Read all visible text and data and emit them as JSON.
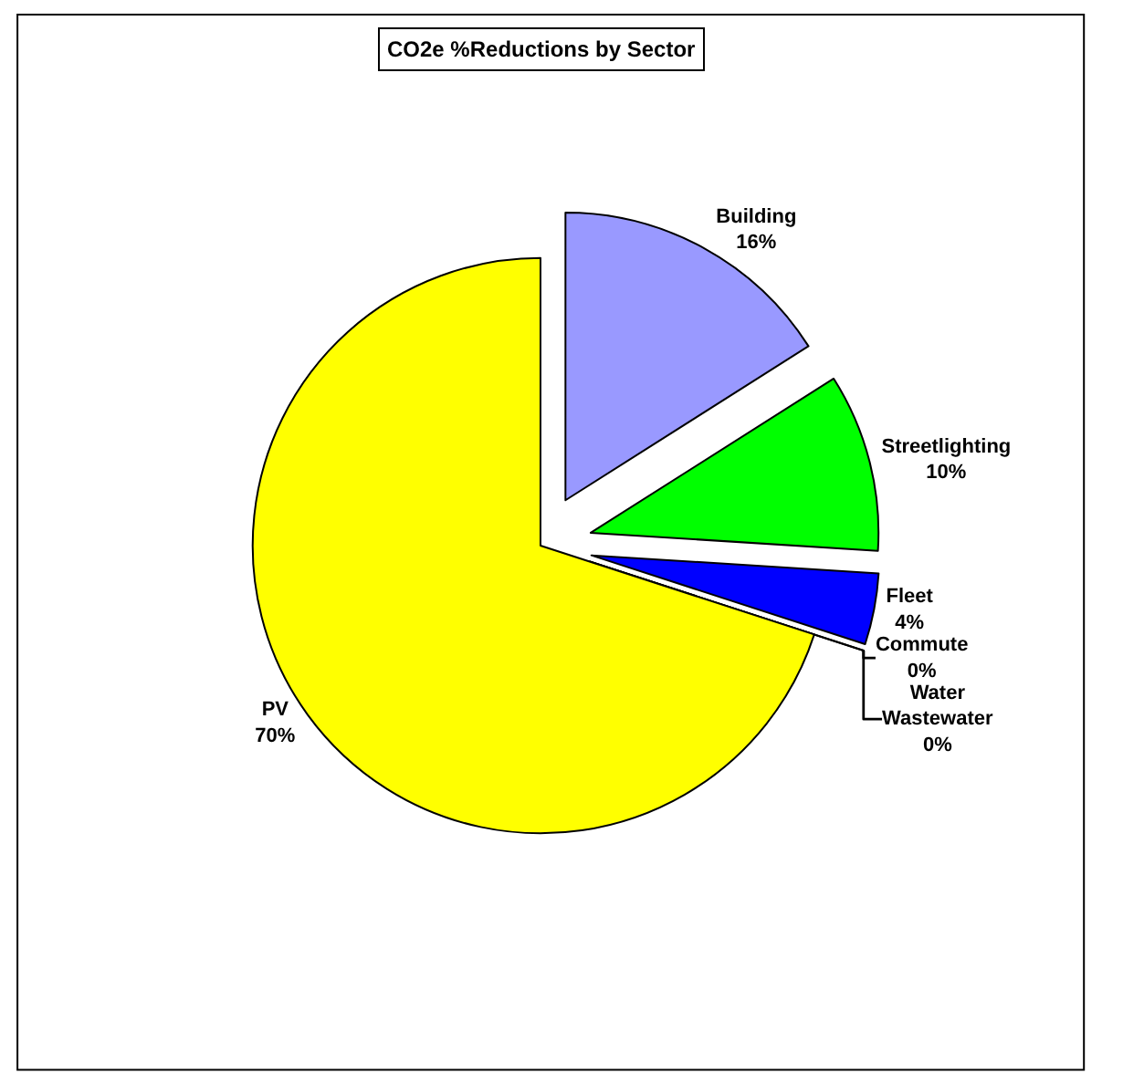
{
  "chart_data": {
    "type": "pie",
    "title": "CO2e %Reductions by Sector",
    "categories": [
      "Building",
      "Streetlighting",
      "Fleet",
      "Commute",
      "Water\nWastewater",
      "PV"
    ],
    "values": [
      16,
      10,
      4,
      0,
      0,
      70
    ],
    "value_labels": [
      "16%",
      "10%",
      "4%",
      "0%",
      "0%",
      "70%"
    ],
    "colors": [
      "#9999ff",
      "#00ff00",
      "#0000ff",
      "#ff00ff",
      "#00ffff",
      "#ffff00"
    ]
  }
}
